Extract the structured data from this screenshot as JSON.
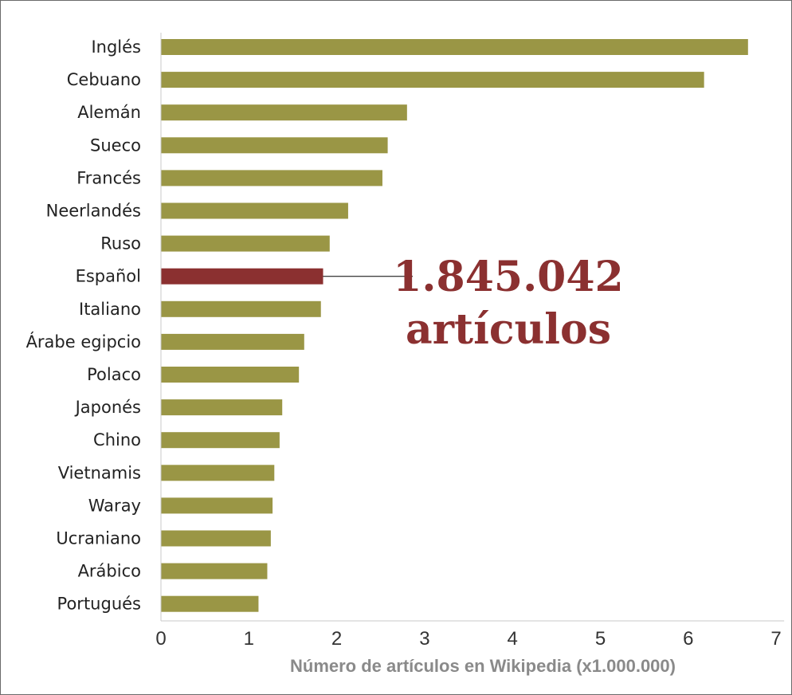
{
  "chart_data": {
    "type": "bar",
    "orientation": "horizontal",
    "categories": [
      "Inglés",
      "Cebuano",
      "Alemán",
      "Sueco",
      "Francés",
      "Neerlandés",
      "Ruso",
      "Español",
      "Italiano",
      "Árabe egipcio",
      "Polaco",
      "Japonés",
      "Chino",
      "Vietnamis",
      "Waray",
      "Ucraniano",
      "Arábico",
      "Portugués"
    ],
    "values": [
      6.68,
      6.18,
      2.8,
      2.58,
      2.52,
      2.13,
      1.92,
      1.845,
      1.82,
      1.63,
      1.57,
      1.38,
      1.35,
      1.29,
      1.27,
      1.25,
      1.21,
      1.11
    ],
    "highlight_index": 7,
    "xlabel": "Número de artículos en Wikipedia (x1.000.000)",
    "ylabel": "",
    "xlim": [
      0,
      7
    ],
    "xticks": [
      "0",
      "1",
      "2",
      "3",
      "4",
      "5",
      "6",
      "7"
    ],
    "grid": false,
    "legend": "none",
    "annotation": {
      "lines": [
        "1.845.042",
        "artículos"
      ],
      "target": "Español"
    },
    "colors": {
      "bar": "#9a9645",
      "highlight": "#8b3030",
      "annotation_text": "#8b3030",
      "axis": "#c8c8c8",
      "xlabel": "#8a8a8a"
    }
  }
}
